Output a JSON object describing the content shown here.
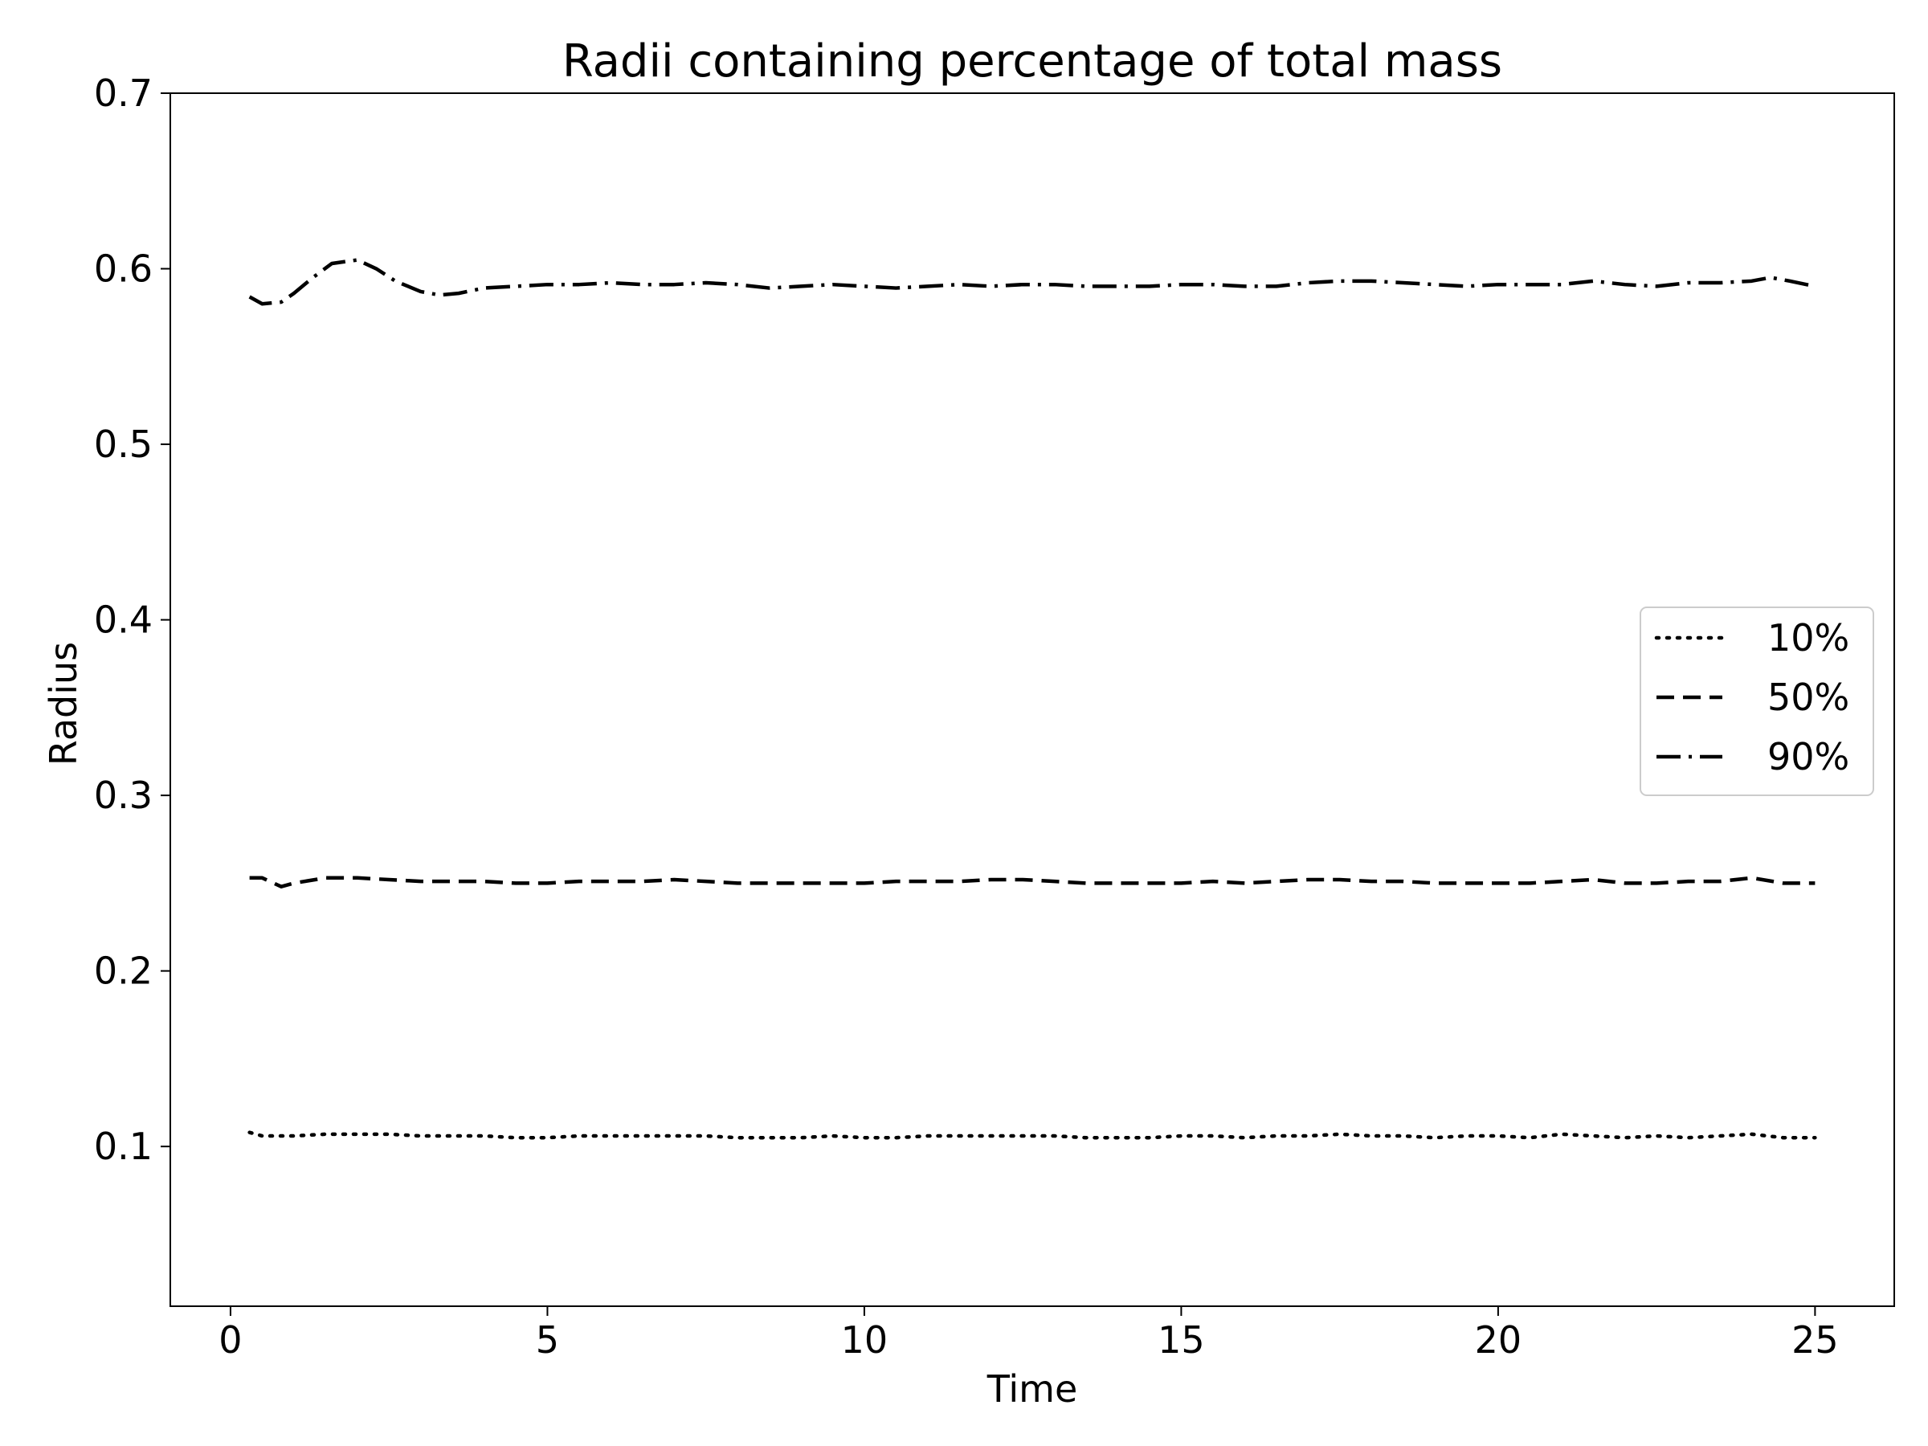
{
  "chart_data": {
    "type": "line",
    "title": "Radii containing percentage of total mass",
    "xlabel": "Time",
    "ylabel": "Radius",
    "xlim": [
      -0.95,
      26.25
    ],
    "ylim": [
      0.009,
      0.7
    ],
    "xticks": [
      0,
      5,
      10,
      15,
      20,
      25
    ],
    "xtick_labels": [
      "0",
      "5",
      "10",
      "15",
      "20",
      "25"
    ],
    "yticks": [
      0.1,
      0.2,
      0.3,
      0.4,
      0.5,
      0.6,
      0.7
    ],
    "ytick_labels": [
      "0.1",
      "0.2",
      "0.3",
      "0.4",
      "0.5",
      "0.6",
      "0.7"
    ],
    "grid": false,
    "legend_position": "center-right",
    "colors": {
      "line": "#000000",
      "axes": "#000000",
      "legend_border": "#cccccc"
    },
    "series": [
      {
        "name": "10%",
        "style": "dotted",
        "x": [
          0.3,
          0.5,
          1.0,
          1.5,
          2.0,
          2.5,
          3.0,
          3.5,
          4.0,
          4.5,
          5.0,
          5.5,
          6.0,
          6.5,
          7.0,
          7.5,
          8.0,
          8.5,
          9.0,
          9.5,
          10.0,
          10.5,
          11.0,
          11.5,
          12.0,
          12.5,
          13.0,
          13.5,
          14.0,
          14.5,
          15.0,
          15.5,
          16.0,
          16.5,
          17.0,
          17.5,
          18.0,
          18.5,
          19.0,
          19.5,
          20.0,
          20.5,
          21.0,
          21.5,
          22.0,
          22.5,
          23.0,
          23.5,
          24.0,
          24.5,
          25.0
        ],
        "y": [
          0.108,
          0.106,
          0.106,
          0.107,
          0.107,
          0.107,
          0.106,
          0.106,
          0.106,
          0.105,
          0.105,
          0.106,
          0.106,
          0.106,
          0.106,
          0.106,
          0.105,
          0.105,
          0.105,
          0.106,
          0.105,
          0.105,
          0.106,
          0.106,
          0.106,
          0.106,
          0.106,
          0.105,
          0.105,
          0.105,
          0.106,
          0.106,
          0.105,
          0.106,
          0.106,
          0.107,
          0.106,
          0.106,
          0.105,
          0.106,
          0.106,
          0.105,
          0.107,
          0.106,
          0.105,
          0.106,
          0.105,
          0.106,
          0.107,
          0.105,
          0.105
        ]
      },
      {
        "name": "50%",
        "style": "dashed",
        "x": [
          0.3,
          0.5,
          0.8,
          1.0,
          1.5,
          2.0,
          2.5,
          3.0,
          3.5,
          4.0,
          4.5,
          5.0,
          5.5,
          6.0,
          6.5,
          7.0,
          7.5,
          8.0,
          8.5,
          9.0,
          9.5,
          10.0,
          10.5,
          11.0,
          11.5,
          12.0,
          12.5,
          13.0,
          13.5,
          14.0,
          14.5,
          15.0,
          15.5,
          16.0,
          16.5,
          17.0,
          17.5,
          18.0,
          18.5,
          19.0,
          19.5,
          20.0,
          20.5,
          21.0,
          21.5,
          22.0,
          22.5,
          23.0,
          23.5,
          24.0,
          24.5,
          25.0
        ],
        "y": [
          0.253,
          0.253,
          0.248,
          0.25,
          0.253,
          0.253,
          0.252,
          0.251,
          0.251,
          0.251,
          0.25,
          0.25,
          0.251,
          0.251,
          0.251,
          0.252,
          0.251,
          0.25,
          0.25,
          0.25,
          0.25,
          0.25,
          0.251,
          0.251,
          0.251,
          0.252,
          0.252,
          0.251,
          0.25,
          0.25,
          0.25,
          0.25,
          0.251,
          0.25,
          0.251,
          0.252,
          0.252,
          0.251,
          0.251,
          0.25,
          0.25,
          0.25,
          0.25,
          0.251,
          0.252,
          0.25,
          0.25,
          0.251,
          0.251,
          0.253,
          0.25,
          0.25
        ]
      },
      {
        "name": "90%",
        "style": "dashdot",
        "x": [
          0.3,
          0.5,
          0.8,
          1.0,
          1.3,
          1.6,
          2.0,
          2.3,
          2.6,
          3.0,
          3.3,
          3.6,
          4.0,
          4.5,
          5.0,
          5.5,
          6.0,
          6.5,
          7.0,
          7.5,
          8.0,
          8.5,
          9.0,
          9.5,
          10.0,
          10.5,
          11.0,
          11.5,
          12.0,
          12.5,
          13.0,
          13.5,
          14.0,
          14.5,
          15.0,
          15.5,
          16.0,
          16.5,
          17.0,
          17.5,
          18.0,
          18.5,
          19.0,
          19.5,
          20.0,
          20.5,
          21.0,
          21.5,
          22.0,
          22.5,
          23.0,
          23.5,
          24.0,
          24.3,
          24.6,
          25.0
        ],
        "y": [
          0.584,
          0.58,
          0.581,
          0.586,
          0.595,
          0.603,
          0.605,
          0.6,
          0.593,
          0.587,
          0.585,
          0.586,
          0.589,
          0.59,
          0.591,
          0.591,
          0.592,
          0.591,
          0.591,
          0.592,
          0.591,
          0.589,
          0.59,
          0.591,
          0.59,
          0.589,
          0.59,
          0.591,
          0.59,
          0.591,
          0.591,
          0.59,
          0.59,
          0.59,
          0.591,
          0.591,
          0.59,
          0.59,
          0.592,
          0.593,
          0.593,
          0.592,
          0.591,
          0.59,
          0.591,
          0.591,
          0.591,
          0.593,
          0.591,
          0.59,
          0.592,
          0.592,
          0.593,
          0.595,
          0.593,
          0.59
        ]
      }
    ]
  }
}
